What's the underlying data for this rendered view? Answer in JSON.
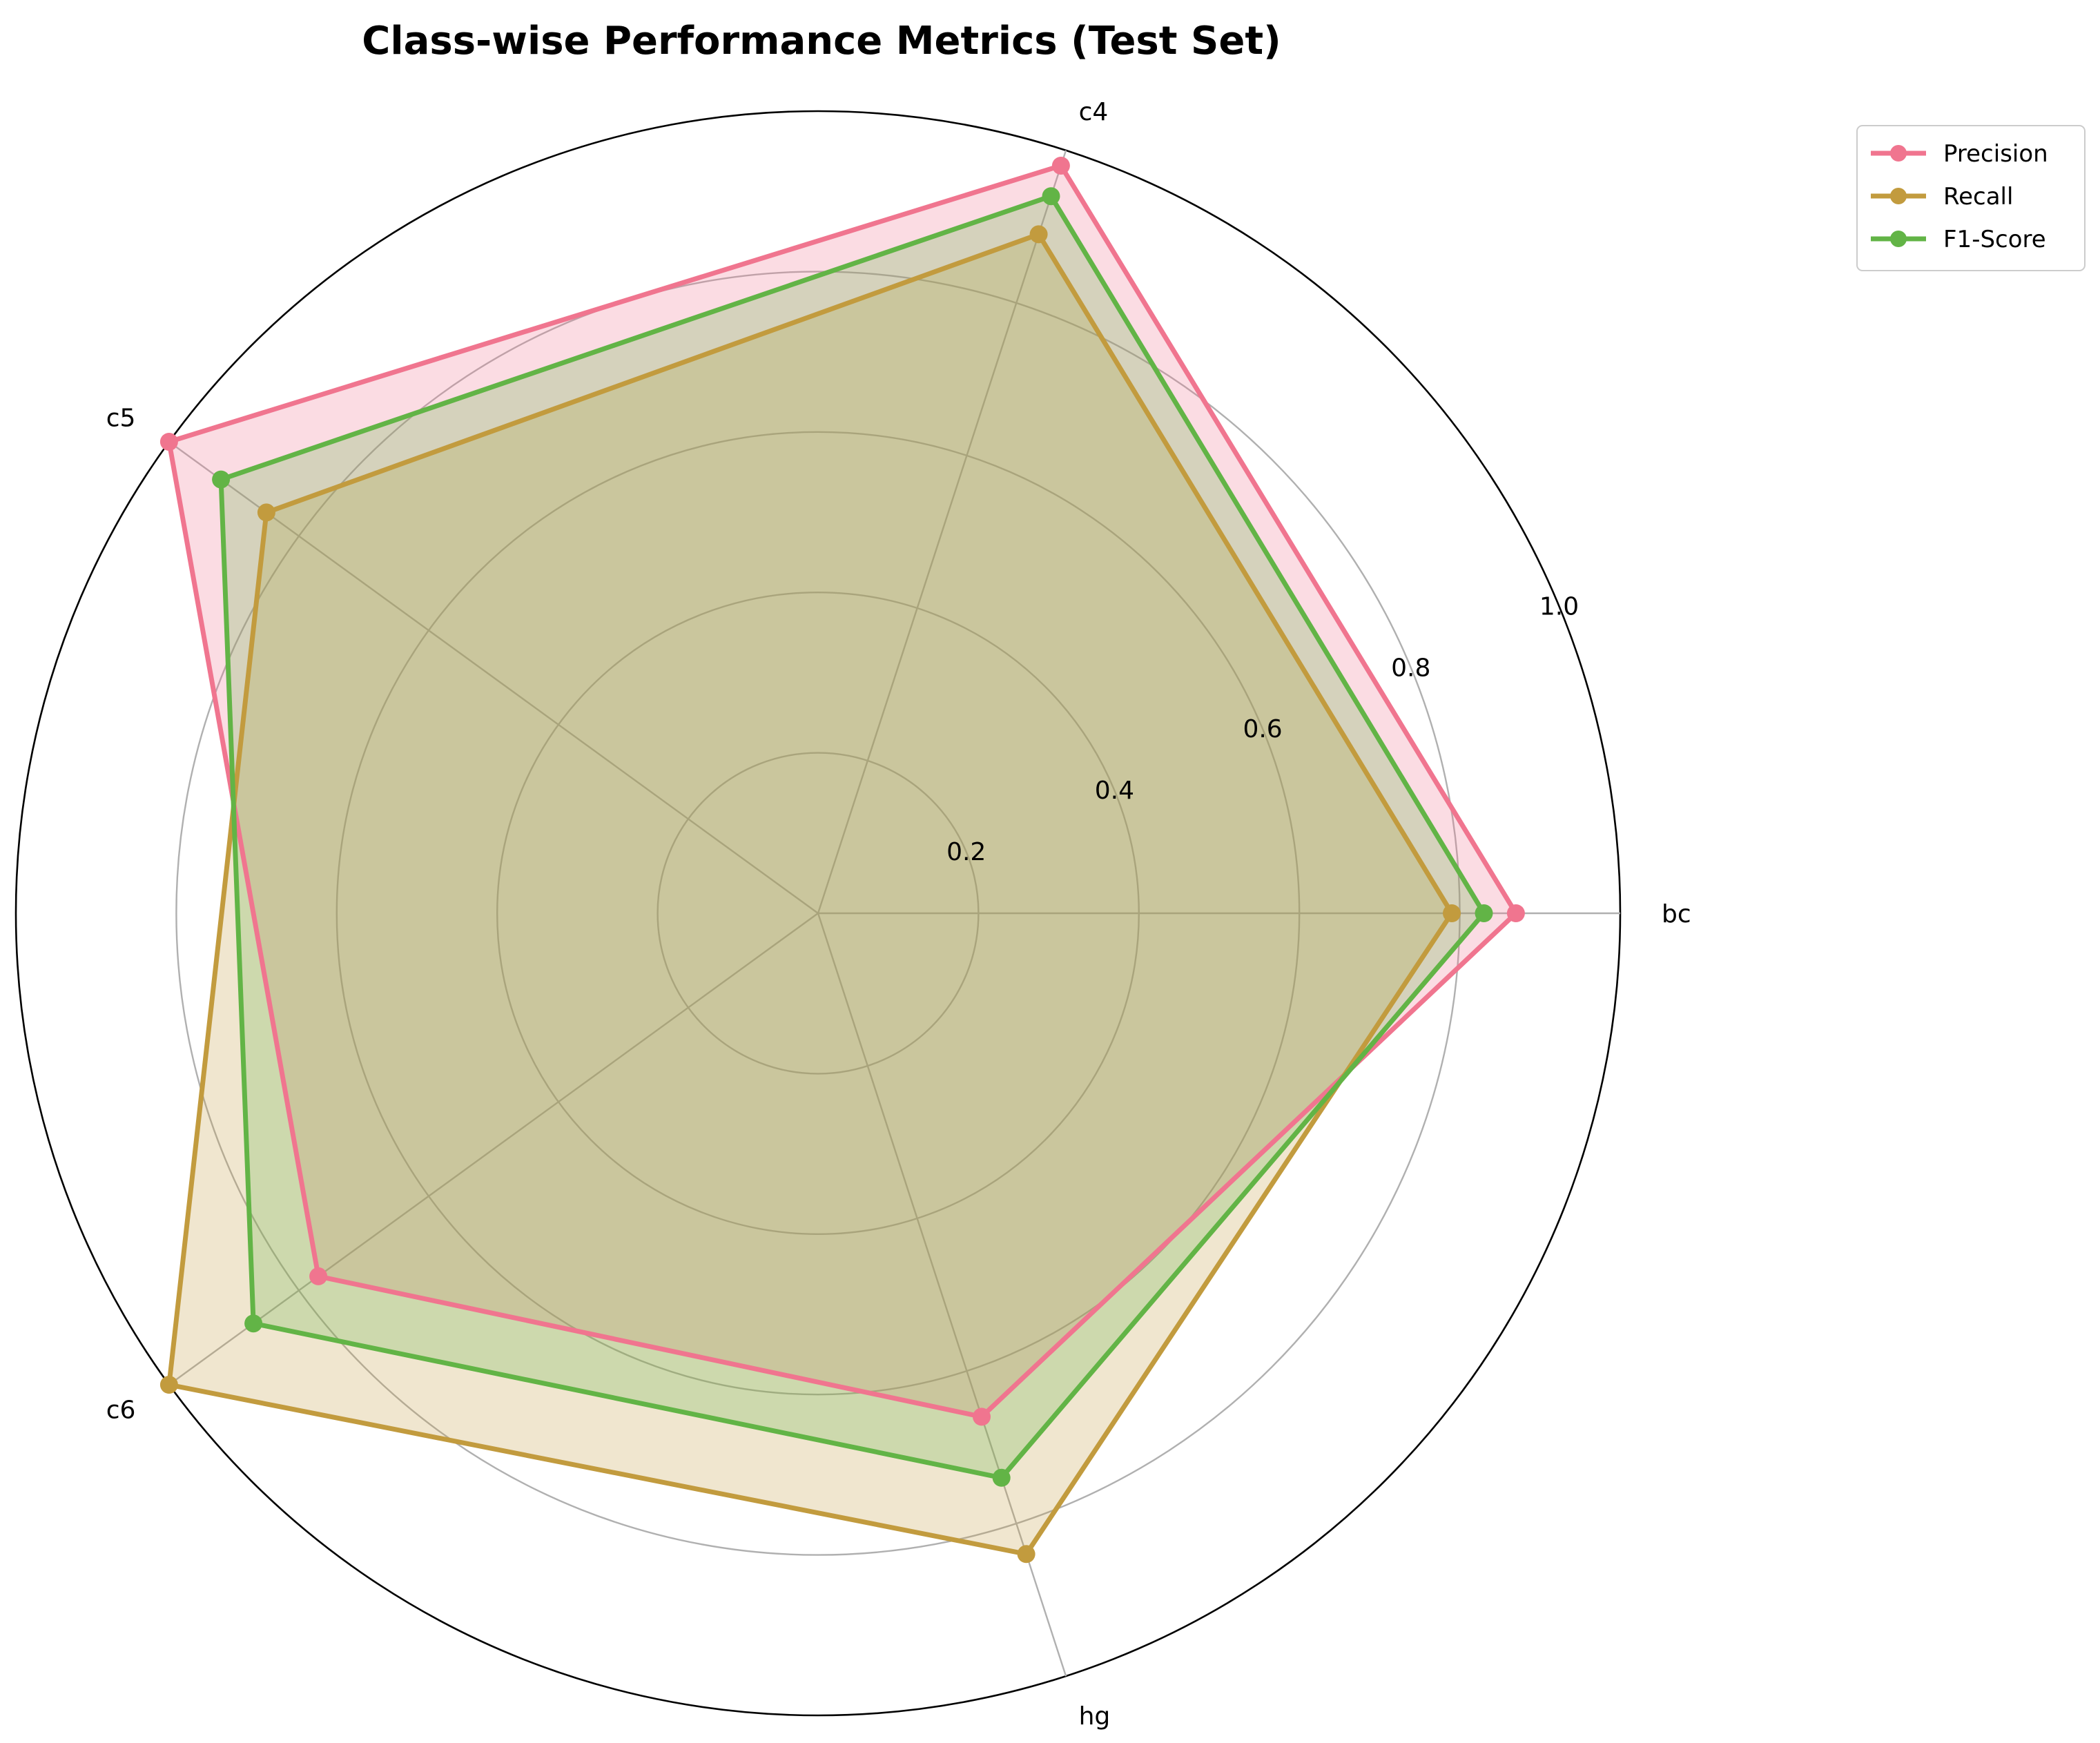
{
  "chart_data": {
    "type": "radar",
    "title": "Class-wise Performance Metrics (Test Set)",
    "categories": [
      "bc",
      "c4",
      "c5",
      "c6",
      "hg"
    ],
    "series": [
      {
        "name": "Precision",
        "color": "#f0758f",
        "values": [
          0.87,
          0.98,
          1.0,
          0.77,
          0.66
        ]
      },
      {
        "name": "Recall",
        "color": "#c29b3e",
        "values": [
          0.79,
          0.89,
          0.85,
          1.0,
          0.84
        ]
      },
      {
        "name": "F1-Score",
        "color": "#62b446",
        "values": [
          0.83,
          0.94,
          0.92,
          0.87,
          0.74
        ]
      }
    ],
    "rlim": [
      0,
      1.0
    ],
    "rticks": [
      "0.2",
      "0.4",
      "0.6",
      "0.8",
      "1.0"
    ],
    "grid": true,
    "legend_position": "top-right"
  }
}
